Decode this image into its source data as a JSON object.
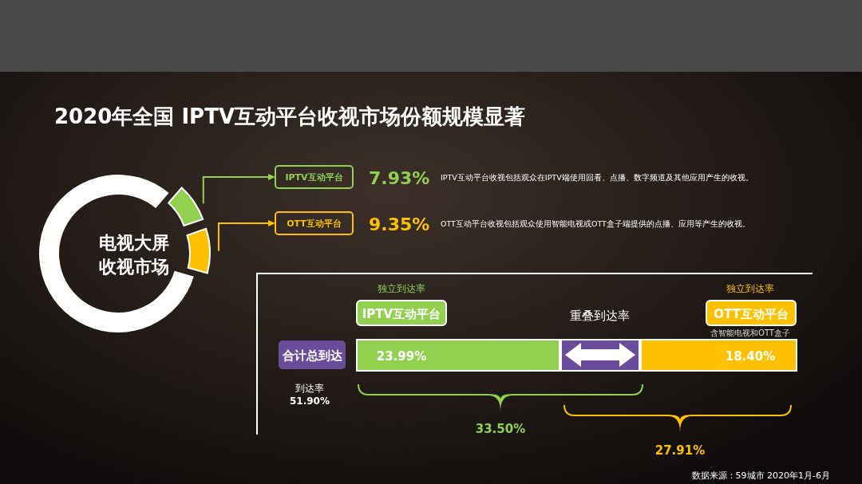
{
  "chart_data": [
    {
      "type": "donut",
      "title": "2020年全国 IPTV互动平台收视市场份额规模显著",
      "categories": [
        "IPTV互动平台",
        "OTT互动平台",
        null
      ],
      "values": [
        7.93,
        9.35,
        82.72
      ],
      "colors": [
        "#92d050",
        "#ffc000",
        "#ffffff"
      ],
      "value_labels": [
        "7.93%",
        "9.35%",
        null
      ],
      "legend": "right",
      "annotations": [
        "电视大屏收视市场",
        "IPTV互动平台收视包括观众在IPTV端使用回看、点播、数字频道及其他应用产生的收视。",
        "OTT互动平台收视包括观众使用智能电视或OTT盒子端提供的点播、应用等产生的收视。"
      ]
    },
    {
      "type": "other",
      "annotations": [
        "独立到达率",
        "IPTV互动平台",
        "重叠到达率",
        "独立到达率",
        "OTT互动平台",
        "含智能电视和OTT盒子",
        "合计总到达",
        "到达率",
        "51.90%",
        "23.99%",
        "18.40%",
        "33.50%",
        "27.91%",
        "数据来源：59城市 2020年1月-6月"
      ]
    }
  ]
}
